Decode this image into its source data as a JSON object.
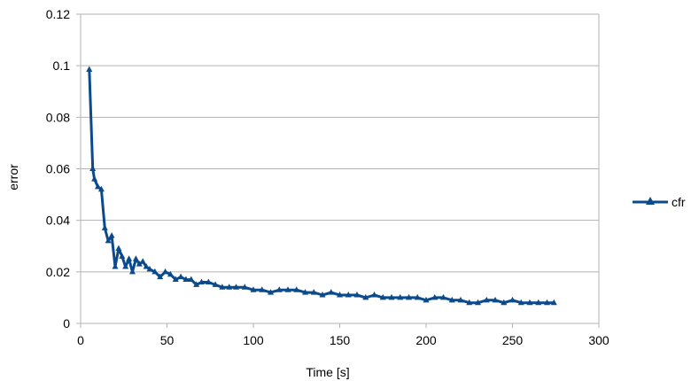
{
  "chart_data": {
    "type": "line",
    "title": "",
    "xlabel": "Time [s]",
    "ylabel": "error",
    "xlim": [
      0,
      300
    ],
    "ylim": [
      0,
      0.12
    ],
    "x_ticks": [
      0,
      50,
      100,
      150,
      200,
      250,
      300
    ],
    "y_ticks": [
      0,
      0.02,
      0.04,
      0.06,
      0.08,
      0.1,
      0.12
    ],
    "x_tick_labels": [
      "0",
      "50",
      "100",
      "150",
      "200",
      "250",
      "300"
    ],
    "y_tick_labels": [
      "0",
      "0.02",
      "0.04",
      "0.06",
      "0.08",
      "0.1",
      "0.12"
    ],
    "grid": "horizontal",
    "legend_position": "right",
    "series": [
      {
        "name": "cfr",
        "color": "#0b4a8b",
        "marker": "triangle",
        "x": [
          5,
          7,
          8,
          10,
          12,
          14,
          16,
          18,
          20,
          22,
          24,
          26,
          28,
          30,
          32,
          34,
          36,
          38,
          40,
          43,
          46,
          49,
          52,
          55,
          58,
          61,
          64,
          67,
          70,
          74,
          78,
          82,
          86,
          90,
          95,
          100,
          105,
          110,
          115,
          120,
          125,
          130,
          135,
          140,
          145,
          150,
          155,
          160,
          165,
          170,
          175,
          180,
          185,
          190,
          195,
          200,
          205,
          210,
          215,
          220,
          225,
          230,
          235,
          240,
          245,
          250,
          255,
          260,
          265,
          270,
          274
        ],
        "y": [
          0.0985,
          0.06,
          0.056,
          0.053,
          0.052,
          0.037,
          0.032,
          0.034,
          0.022,
          0.029,
          0.026,
          0.022,
          0.025,
          0.02,
          0.025,
          0.023,
          0.024,
          0.022,
          0.021,
          0.02,
          0.018,
          0.02,
          0.019,
          0.017,
          0.018,
          0.017,
          0.017,
          0.015,
          0.016,
          0.016,
          0.015,
          0.014,
          0.014,
          0.014,
          0.014,
          0.013,
          0.013,
          0.012,
          0.013,
          0.013,
          0.013,
          0.012,
          0.012,
          0.011,
          0.012,
          0.011,
          0.011,
          0.011,
          0.01,
          0.011,
          0.01,
          0.01,
          0.01,
          0.01,
          0.01,
          0.009,
          0.01,
          0.01,
          0.009,
          0.009,
          0.008,
          0.008,
          0.009,
          0.009,
          0.008,
          0.009,
          0.008,
          0.008,
          0.008,
          0.008,
          0.008
        ]
      }
    ]
  }
}
